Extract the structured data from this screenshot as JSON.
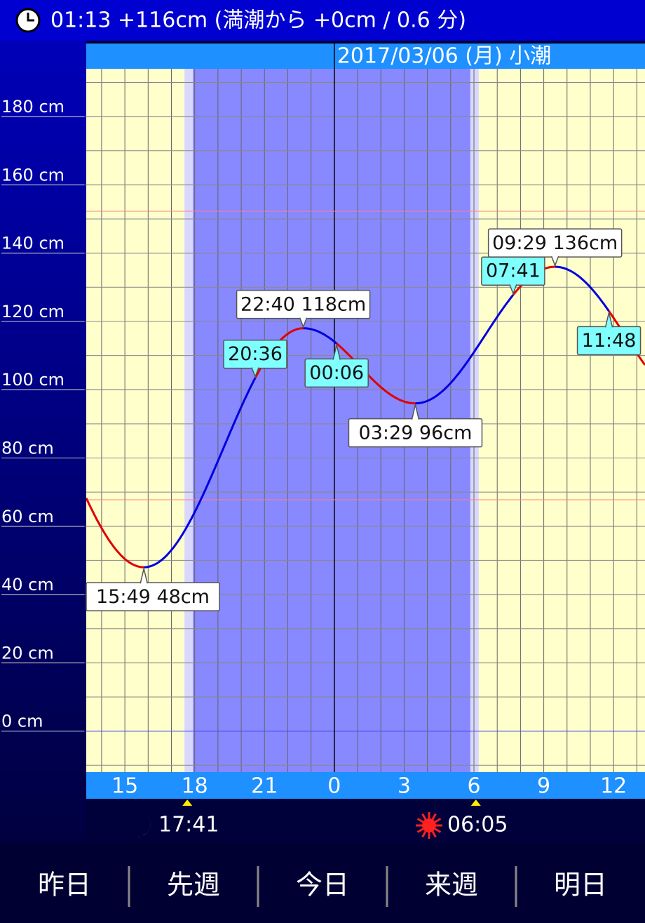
{
  "header": {
    "text": "01:13 +116cm (満潮から +0cm / 0.6 分)"
  },
  "date_label": "2017/03/06 (月) 小潮",
  "chart_data": {
    "type": "line",
    "ylim": [
      -12,
      194
    ],
    "yticks": [
      {
        "value": 0,
        "label": "0 cm"
      },
      {
        "value": 20,
        "label": "20 cm"
      },
      {
        "value": 40,
        "label": "40 cm"
      },
      {
        "value": 60,
        "label": "60 cm"
      },
      {
        "value": 80,
        "label": "80 cm"
      },
      {
        "value": 100,
        "label": "100 cm"
      },
      {
        "value": 120,
        "label": "120 cm"
      },
      {
        "value": 140,
        "label": "140 cm"
      },
      {
        "value": 160,
        "label": "160 cm"
      },
      {
        "value": 180,
        "label": "180 cm"
      }
    ],
    "xlim": [
      13.34,
      37.35
    ],
    "xticks": [
      15,
      18,
      21,
      {
        "value": 24,
        "label": "0"
      },
      {
        "value": 27,
        "label": "3"
      },
      {
        "value": 30,
        "label": "6"
      },
      {
        "value": 33,
        "label": "9"
      },
      {
        "value": 36,
        "label": "12"
      }
    ],
    "extremes": [
      {
        "time": "15:49",
        "value": 48,
        "value_label": "48cm"
      },
      {
        "time": "22:40",
        "value": 118,
        "value_label": "118cm"
      },
      {
        "time": "03:29",
        "value": 96,
        "value_label": "96cm"
      },
      {
        "time": "09:29",
        "value": 136,
        "value_label": "136cm"
      }
    ],
    "markers": [
      "20:36",
      "00:06",
      "07:41",
      "11:48"
    ],
    "moon": "17:41",
    "sun": "06:05"
  },
  "nav": [
    "昨日",
    "先週",
    "今日",
    "来週",
    "明日"
  ]
}
